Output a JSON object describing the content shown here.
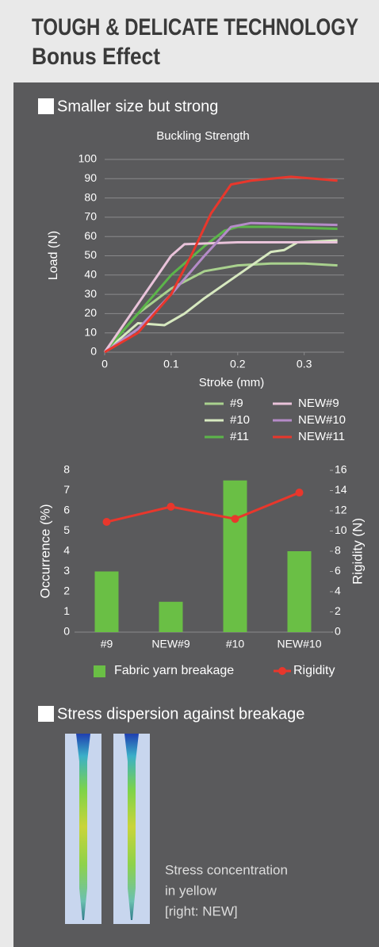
{
  "header": {
    "title": "TOUGH & DELICATE TECHNOLOGY",
    "subtitle": "Bonus Effect"
  },
  "sections": [
    {
      "heading": "Smaller size but strong"
    },
    {
      "heading": "Stress dispersion against breakage",
      "caption": [
        "Stress concentration",
        "in yellow",
        "[right: NEW]"
      ]
    }
  ],
  "chart_data": [
    {
      "type": "line",
      "title": "Buckling Strength",
      "x_label": "Stroke (mm)",
      "y_label": "Load (N)",
      "xlim": [
        0,
        0.36
      ],
      "xticks": [
        0,
        0.1,
        0.2,
        0.3
      ],
      "ylim": [
        0,
        100
      ],
      "yticks": [
        0,
        10,
        20,
        30,
        40,
        50,
        60,
        70,
        80,
        90,
        100
      ],
      "grid": true,
      "series": [
        {
          "name": "#9",
          "color": "#a9d18e",
          "x": [
            0,
            0.05,
            0.1,
            0.15,
            0.2,
            0.25,
            0.3,
            0.35
          ],
          "values": [
            0,
            20,
            33,
            42,
            45,
            46,
            46,
            45
          ]
        },
        {
          "name": "#10",
          "color": "#d7e9c0",
          "x": [
            0,
            0.05,
            0.09,
            0.12,
            0.15,
            0.2,
            0.25,
            0.27,
            0.29,
            0.35
          ],
          "values": [
            0,
            15,
            14,
            20,
            28,
            40,
            52,
            53,
            57,
            58
          ]
        },
        {
          "name": "#11",
          "color": "#5cb54a",
          "x": [
            0,
            0.05,
            0.1,
            0.15,
            0.18,
            0.2,
            0.25,
            0.35
          ],
          "values": [
            0,
            20,
            40,
            55,
            63,
            65,
            65,
            64
          ]
        },
        {
          "name": "NEW#9",
          "color": "#e9c3da",
          "x": [
            0,
            0.05,
            0.1,
            0.12,
            0.2,
            0.35
          ],
          "values": [
            0,
            25,
            50,
            56,
            57,
            57
          ]
        },
        {
          "name": "NEW#10",
          "color": "#b58bc8",
          "x": [
            0,
            0.05,
            0.1,
            0.15,
            0.19,
            0.22,
            0.35
          ],
          "values": [
            0,
            12,
            30,
            50,
            65,
            67,
            66
          ]
        },
        {
          "name": "NEW#11",
          "color": "#e8372c",
          "x": [
            0,
            0.05,
            0.1,
            0.13,
            0.16,
            0.19,
            0.22,
            0.28,
            0.35
          ],
          "values": [
            0,
            10,
            30,
            50,
            72,
            87,
            89,
            91,
            89
          ]
        }
      ]
    },
    {
      "type": "bar",
      "y_label": "Occurrence (%)",
      "y2_label": "Rigidity (N)",
      "categories": [
        "#9",
        "NEW#9",
        "#10",
        "NEW#10"
      ],
      "ylim": [
        0,
        8
      ],
      "yticks": [
        0,
        1,
        2,
        3,
        4,
        5,
        6,
        7,
        8
      ],
      "y2lim": [
        0,
        16
      ],
      "y2ticks": [
        0,
        2,
        4,
        6,
        8,
        10,
        12,
        14,
        16
      ],
      "grid": false,
      "series": [
        {
          "name": "Fabric yarn breakage",
          "color": "#6abf45",
          "values": [
            3,
            1.5,
            7.5,
            4
          ]
        },
        {
          "name": "Rigidity",
          "color": "#e8372c",
          "type": "line",
          "axis": "y2",
          "values": [
            10.9,
            12.4,
            11.2,
            13.8
          ]
        }
      ]
    }
  ]
}
